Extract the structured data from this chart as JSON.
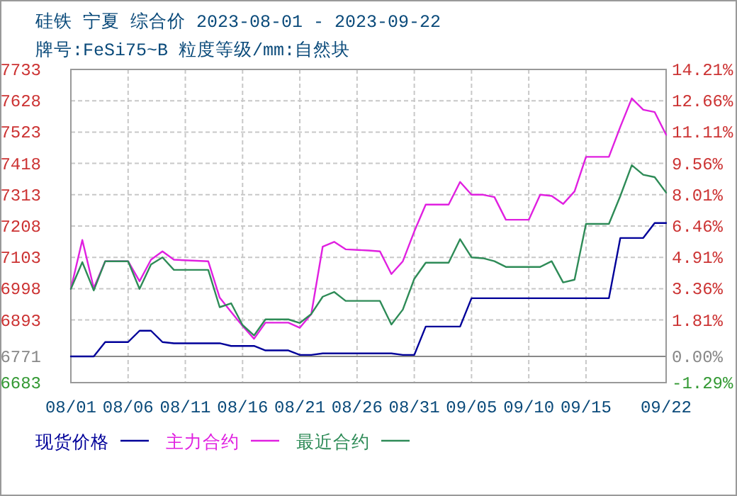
{
  "chart_data": {
    "type": "line",
    "title": "硅铁 宁夏 综合价 2023-08-01 - 2023-09-22",
    "subtitle": "牌号:FeSi75~B 粒度等级/mm:自然块",
    "series": [
      {
        "name": "现货价格",
        "color": "#000099",
        "x": [
          "--08-01",
          "--08-03",
          "--08-04",
          "--08-06",
          "--08-07",
          "--08-08",
          "--08-09",
          "--08-10",
          "--08-14",
          "--08-15",
          "--08-17",
          "--08-18",
          "--08-20",
          "--08-21",
          "--08-22",
          "--08-23",
          "--08-29",
          "--08-30",
          "--08-31",
          "--09-01",
          "--09-04",
          "--09-05",
          "--09-17",
          "--09-18",
          "--09-20",
          "--09-21",
          "--09-22"
        ],
        "values": [
          6771,
          6771,
          6819,
          6819,
          6857,
          6857,
          6819,
          6815,
          6815,
          6806,
          6806,
          6791,
          6791,
          6776,
          6776,
          6781,
          6781,
          6776,
          6776,
          6871,
          6871,
          6966,
          6966,
          7168,
          7168,
          7218,
          7218
        ]
      },
      {
        "name": "主力合约",
        "color": "#e020e0",
        "x": [
          "--08-01",
          "--08-02",
          "--08-03",
          "--08-04",
          "--08-06",
          "--08-07",
          "--08-08",
          "--08-09",
          "--08-10",
          "--08-13",
          "--08-14",
          "--08-15",
          "--08-16",
          "--08-17",
          "--08-18",
          "--08-20",
          "--08-21",
          "--08-22",
          "--08-23",
          "--08-24",
          "--08-25",
          "--08-27",
          "--08-28",
          "--08-29",
          "--08-30",
          "--08-31",
          "--09-01",
          "--09-03",
          "--09-04",
          "--09-05",
          "--09-06",
          "--09-07",
          "--09-08",
          "--09-10",
          "--09-11",
          "--09-12",
          "--09-13",
          "--09-14",
          "--09-15",
          "--09-17",
          "--09-18",
          "--09-19",
          "--09-20",
          "--09-21",
          "--09-22"
        ],
        "values": [
          6997,
          7161,
          7000,
          7090,
          7090,
          7023,
          7095,
          7123,
          7095,
          7090,
          6968,
          6920,
          6873,
          6830,
          6884,
          6884,
          6867,
          6913,
          7139,
          7155,
          7130,
          7126,
          7123,
          7047,
          7090,
          7190,
          7280,
          7280,
          7356,
          7313,
          7313,
          7305,
          7229,
          7229,
          7313,
          7309,
          7282,
          7324,
          7440,
          7440,
          7541,
          7636,
          7598,
          7590,
          7514
        ]
      },
      {
        "name": "最近合约",
        "color": "#2e8b57",
        "x": [
          "--08-01",
          "--08-02",
          "--08-03",
          "--08-04",
          "--08-06",
          "--08-07",
          "--08-08",
          "--08-09",
          "--08-10",
          "--08-13",
          "--08-14",
          "--08-15",
          "--08-16",
          "--08-17",
          "--08-18",
          "--08-20",
          "--08-21",
          "--08-22",
          "--08-23",
          "--08-24",
          "--08-25",
          "--08-28",
          "--08-29",
          "--08-30",
          "--08-31",
          "--09-01",
          "--09-03",
          "--09-04",
          "--09-05",
          "--09-06",
          "--09-07",
          "--09-08",
          "--09-11",
          "--09-12",
          "--09-13",
          "--09-14",
          "--09-15",
          "--09-17",
          "--09-18",
          "--09-19",
          "--09-20",
          "--09-21",
          "--09-22"
        ],
        "values": [
          6997,
          7087,
          6992,
          7090,
          7090,
          6997,
          7079,
          7103,
          7061,
          7061,
          6936,
          6949,
          6876,
          6841,
          6895,
          6895,
          6883,
          6913,
          6971,
          6987,
          6957,
          6957,
          6878,
          6928,
          7031,
          7085,
          7085,
          7164,
          7103,
          7100,
          7090,
          7071,
          7071,
          7090,
          7019,
          7028,
          7215,
          7215,
          7309,
          7412,
          7380,
          7372,
          7320
        ]
      }
    ],
    "xlim": [
      "--08-01",
      "--09-22"
    ],
    "xticks": [
      {
        "value": "--08-01",
        "label": "08/01"
      },
      {
        "value": "--08-06",
        "label": "08/06"
      },
      {
        "value": "--08-11",
        "label": "08/11"
      },
      {
        "value": "--08-16",
        "label": "08/16"
      },
      {
        "value": "--08-21",
        "label": "08/21"
      },
      {
        "value": "--08-26",
        "label": "08/26"
      },
      {
        "value": "--08-31",
        "label": "08/31"
      },
      {
        "value": "--09-05",
        "label": "09/05"
      },
      {
        "value": "--09-10",
        "label": "09/10"
      },
      {
        "value": "--09-15",
        "label": "09/15"
      },
      {
        "value": "--09-22",
        "label": "09/22"
      }
    ],
    "ylim": [
      6683,
      7733
    ],
    "yticks": [
      7733,
      7628,
      7523,
      7418,
      7313,
      7208,
      7103,
      6998,
      6893,
      6771,
      6683
    ],
    "y2lim": [
      -1.29,
      14.21
    ],
    "y2ticks": [
      {
        "value": 14.21,
        "label": "14.21%"
      },
      {
        "value": 12.66,
        "label": "12.66%"
      },
      {
        "value": 11.11,
        "label": "11.11%"
      },
      {
        "value": 9.56,
        "label": "9.56%"
      },
      {
        "value": 8.01,
        "label": "8.01%"
      },
      {
        "value": 6.46,
        "label": "6.46%"
      },
      {
        "value": 4.91,
        "label": "4.91%"
      },
      {
        "value": 3.36,
        "label": "3.36%"
      },
      {
        "value": 1.81,
        "label": "1.81%"
      },
      {
        "value": 0,
        "label": "0.00%"
      },
      {
        "value": -1.29,
        "label": "-1.29%"
      }
    ],
    "ref_lines": [
      {
        "axis": "y",
        "value": 6771,
        "color": "#888888",
        "line_style": "solid"
      }
    ],
    "grid": true,
    "legend": "bottom",
    "line_style": "solid",
    "marker": "none"
  }
}
